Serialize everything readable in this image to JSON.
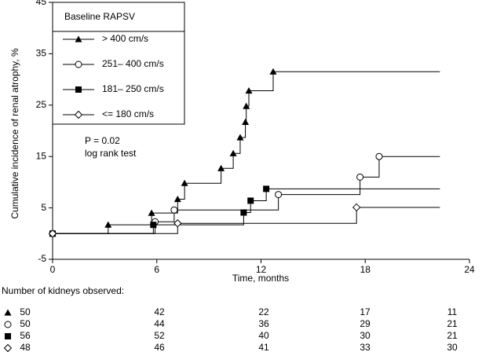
{
  "chart_data": {
    "type": "step",
    "y_label": "Cumulative incidence of renal atrophy, %",
    "x_label": "Time, months",
    "xlim": [
      0,
      24
    ],
    "xticks": [
      0,
      6,
      12,
      18,
      24
    ],
    "ylim": [
      -5,
      45
    ],
    "yticks": [
      -5,
      5,
      15,
      25,
      35,
      45
    ],
    "legend_title": "Baseline RAPSV",
    "legend": "top-left",
    "annotations": [
      "P = 0.02",
      "log rank test"
    ],
    "series": [
      {
        "name": "> 400 cm/s",
        "marker": "triangle",
        "color": "#000000",
        "followup_end": 22.3,
        "x": [
          0,
          3.2,
          5.7,
          7.2,
          7.6,
          9.7,
          10.4,
          10.8,
          11.1,
          11.15,
          11.3,
          12.7
        ],
        "values": [
          0,
          1.7,
          4,
          6.7,
          9.8,
          12.7,
          15.6,
          18.7,
          21.7,
          24.8,
          27.8,
          31.5
        ]
      },
      {
        "name": "251– 400 cm/s",
        "marker": "circle",
        "color": "#000000",
        "followup_end": 22.3,
        "x": [
          0,
          5.9,
          7.0,
          13.0,
          17.7,
          18.8
        ],
        "values": [
          0,
          2.3,
          4.6,
          7.6,
          11,
          15
        ]
      },
      {
        "name": "181– 250 cm/s",
        "marker": "square",
        "color": "#000000",
        "followup_end": 22.3,
        "x": [
          0,
          5.8,
          11.0,
          11.4,
          12.3
        ],
        "values": [
          0,
          1.7,
          4.1,
          6.4,
          8.7
        ]
      },
      {
        "name": "<= 180 cm/s",
        "marker": "diamond",
        "color": "#000000",
        "followup_end": 22.3,
        "x": [
          0,
          7.2,
          17.5
        ],
        "values": [
          0,
          2,
          5.1
        ]
      }
    ],
    "risk_table": {
      "title": "Number of kidneys observed:",
      "rows": [
        [
          50,
          42,
          22,
          17,
          11
        ],
        [
          50,
          44,
          36,
          29,
          21
        ],
        [
          56,
          52,
          40,
          30,
          21
        ],
        [
          48,
          46,
          41,
          33,
          30
        ]
      ]
    }
  }
}
